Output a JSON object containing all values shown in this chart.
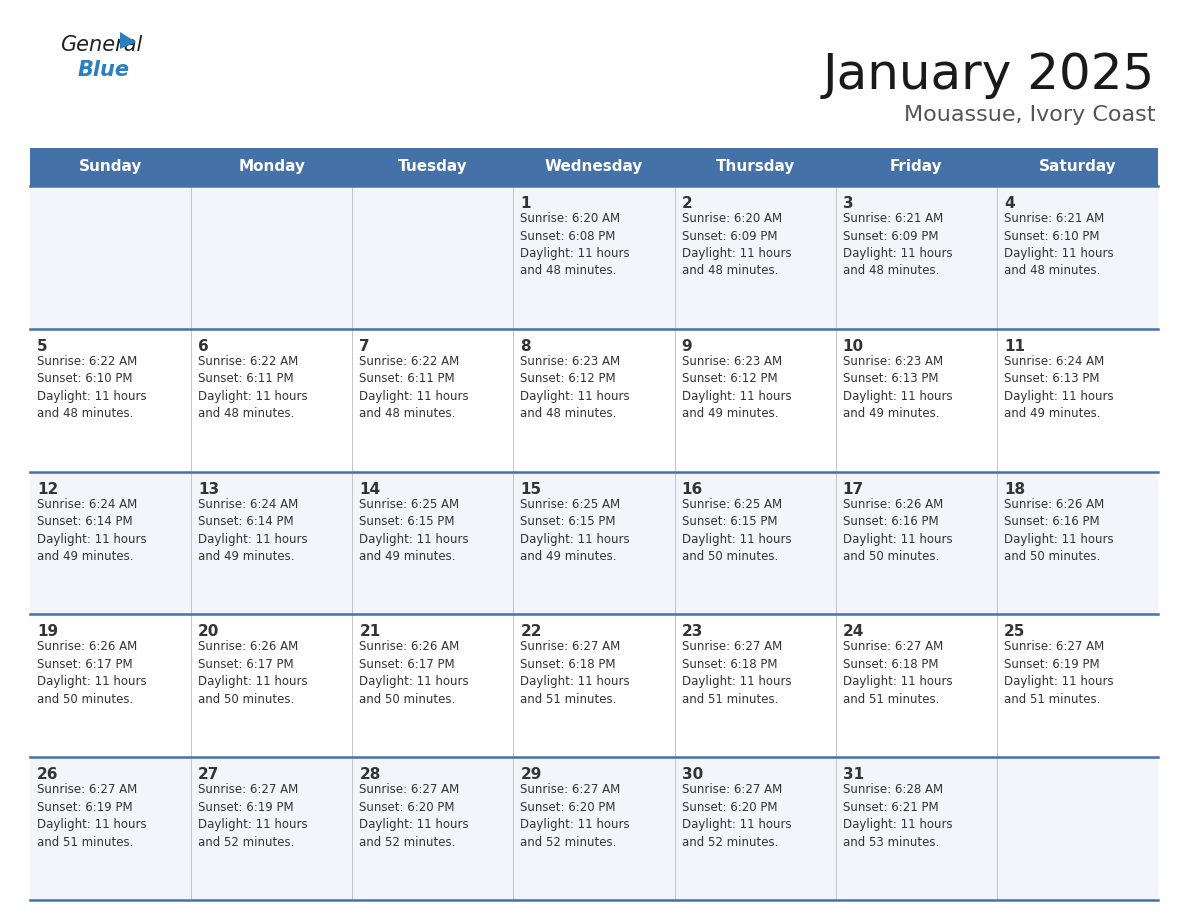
{
  "title": "January 2025",
  "subtitle": "Mouassue, Ivory Coast",
  "header_bg": "#4472a8",
  "header_text_color": "#ffffff",
  "cell_bg_light": "#f2f5f9",
  "cell_bg_white": "#ffffff",
  "border_color": "#4472a8",
  "text_color_dark": "#333333",
  "day_headers": [
    "Sunday",
    "Monday",
    "Tuesday",
    "Wednesday",
    "Thursday",
    "Friday",
    "Saturday"
  ],
  "calendar_data": [
    [
      "",
      "",
      "",
      "1\nSunrise: 6:20 AM\nSunset: 6:08 PM\nDaylight: 11 hours\nand 48 minutes.",
      "2\nSunrise: 6:20 AM\nSunset: 6:09 PM\nDaylight: 11 hours\nand 48 minutes.",
      "3\nSunrise: 6:21 AM\nSunset: 6:09 PM\nDaylight: 11 hours\nand 48 minutes.",
      "4\nSunrise: 6:21 AM\nSunset: 6:10 PM\nDaylight: 11 hours\nand 48 minutes."
    ],
    [
      "5\nSunrise: 6:22 AM\nSunset: 6:10 PM\nDaylight: 11 hours\nand 48 minutes.",
      "6\nSunrise: 6:22 AM\nSunset: 6:11 PM\nDaylight: 11 hours\nand 48 minutes.",
      "7\nSunrise: 6:22 AM\nSunset: 6:11 PM\nDaylight: 11 hours\nand 48 minutes.",
      "8\nSunrise: 6:23 AM\nSunset: 6:12 PM\nDaylight: 11 hours\nand 48 minutes.",
      "9\nSunrise: 6:23 AM\nSunset: 6:12 PM\nDaylight: 11 hours\nand 49 minutes.",
      "10\nSunrise: 6:23 AM\nSunset: 6:13 PM\nDaylight: 11 hours\nand 49 minutes.",
      "11\nSunrise: 6:24 AM\nSunset: 6:13 PM\nDaylight: 11 hours\nand 49 minutes."
    ],
    [
      "12\nSunrise: 6:24 AM\nSunset: 6:14 PM\nDaylight: 11 hours\nand 49 minutes.",
      "13\nSunrise: 6:24 AM\nSunset: 6:14 PM\nDaylight: 11 hours\nand 49 minutes.",
      "14\nSunrise: 6:25 AM\nSunset: 6:15 PM\nDaylight: 11 hours\nand 49 minutes.",
      "15\nSunrise: 6:25 AM\nSunset: 6:15 PM\nDaylight: 11 hours\nand 49 minutes.",
      "16\nSunrise: 6:25 AM\nSunset: 6:15 PM\nDaylight: 11 hours\nand 50 minutes.",
      "17\nSunrise: 6:26 AM\nSunset: 6:16 PM\nDaylight: 11 hours\nand 50 minutes.",
      "18\nSunrise: 6:26 AM\nSunset: 6:16 PM\nDaylight: 11 hours\nand 50 minutes."
    ],
    [
      "19\nSunrise: 6:26 AM\nSunset: 6:17 PM\nDaylight: 11 hours\nand 50 minutes.",
      "20\nSunrise: 6:26 AM\nSunset: 6:17 PM\nDaylight: 11 hours\nand 50 minutes.",
      "21\nSunrise: 6:26 AM\nSunset: 6:17 PM\nDaylight: 11 hours\nand 50 minutes.",
      "22\nSunrise: 6:27 AM\nSunset: 6:18 PM\nDaylight: 11 hours\nand 51 minutes.",
      "23\nSunrise: 6:27 AM\nSunset: 6:18 PM\nDaylight: 11 hours\nand 51 minutes.",
      "24\nSunrise: 6:27 AM\nSunset: 6:18 PM\nDaylight: 11 hours\nand 51 minutes.",
      "25\nSunrise: 6:27 AM\nSunset: 6:19 PM\nDaylight: 11 hours\nand 51 minutes."
    ],
    [
      "26\nSunrise: 6:27 AM\nSunset: 6:19 PM\nDaylight: 11 hours\nand 51 minutes.",
      "27\nSunrise: 6:27 AM\nSunset: 6:19 PM\nDaylight: 11 hours\nand 52 minutes.",
      "28\nSunrise: 6:27 AM\nSunset: 6:20 PM\nDaylight: 11 hours\nand 52 minutes.",
      "29\nSunrise: 6:27 AM\nSunset: 6:20 PM\nDaylight: 11 hours\nand 52 minutes.",
      "30\nSunrise: 6:27 AM\nSunset: 6:20 PM\nDaylight: 11 hours\nand 52 minutes.",
      "31\nSunrise: 6:28 AM\nSunset: 6:21 PM\nDaylight: 11 hours\nand 53 minutes.",
      ""
    ]
  ],
  "general_color": "#222222",
  "blue_color": "#2a7fc1",
  "triangle_color": "#2a7fc1",
  "title_fontsize": 36,
  "subtitle_fontsize": 16,
  "header_fontsize": 11,
  "daynum_fontsize": 11,
  "cell_fontsize": 8.5
}
